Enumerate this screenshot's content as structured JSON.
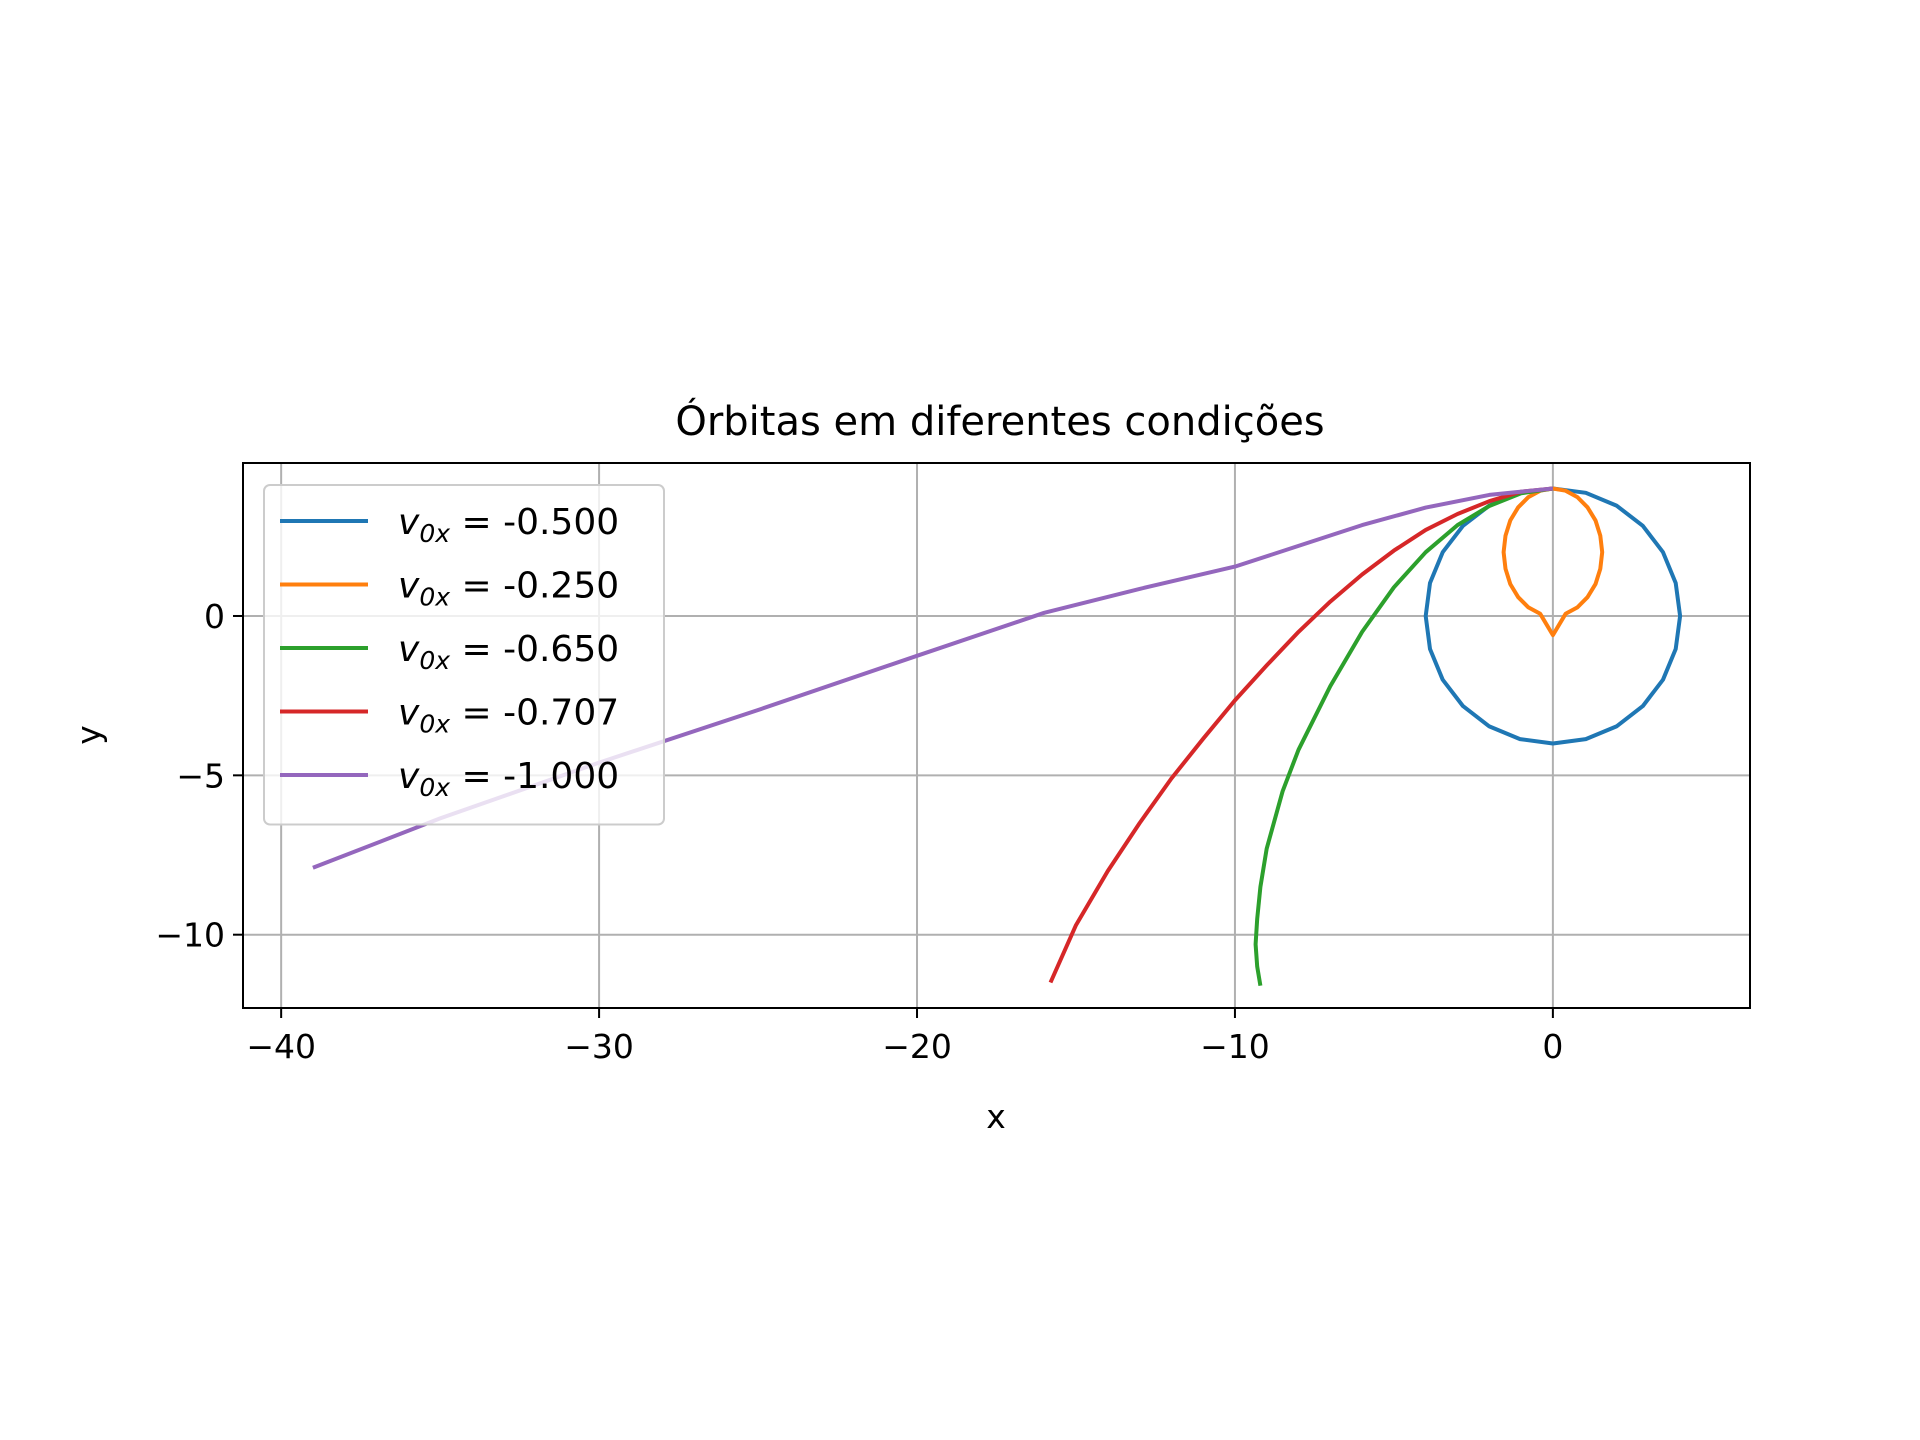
{
  "chart_data": {
    "type": "line",
    "title": "Órbitas em diferentes condições",
    "xlabel": "x",
    "ylabel": "y",
    "xlim": [
      -41.2,
      6.2
    ],
    "ylim": [
      -12.3,
      4.8
    ],
    "xticks": [
      -40,
      -30,
      -20,
      -10,
      0
    ],
    "xtick_labels": [
      "−40",
      "−30",
      "−20",
      "−10",
      "0"
    ],
    "yticks": [
      -10,
      -5,
      0
    ],
    "ytick_labels": [
      "−10",
      "−5",
      "0"
    ],
    "grid": true,
    "legend_position": "top-left",
    "legend_symbol": "v",
    "legend_subscript": "0x",
    "series": [
      {
        "name": "-0.500",
        "color": "#1f77b4",
        "x": [
          0,
          1.0353,
          2.0,
          2.8284,
          3.4641,
          3.8637,
          4.0,
          3.8637,
          3.4641,
          2.8284,
          2.0,
          1.0353,
          0,
          -1.0353,
          -2.0,
          -2.8284,
          -3.4641,
          -3.8637,
          -4.0,
          -3.8637,
          -3.4641,
          -2.8284,
          -2.0,
          -1.0353,
          0
        ],
        "y": [
          4.0,
          3.8637,
          3.4641,
          2.8284,
          2.0,
          1.0353,
          0,
          -1.0353,
          -2.0,
          -2.8284,
          -3.4641,
          -3.8637,
          -4.0,
          -3.8637,
          -3.4641,
          -2.8284,
          -2.0,
          -1.0353,
          0,
          1.0353,
          2.0,
          2.8284,
          3.4641,
          3.8637,
          4.0
        ]
      },
      {
        "name": "-0.250",
        "color": "#ff7f0e",
        "x": [
          0,
          -0.4,
          -0.77,
          -1.09,
          -1.34,
          -1.49,
          -1.55,
          -1.49,
          -1.34,
          -1.09,
          -0.77,
          -0.4,
          0,
          0.4,
          0.77,
          1.09,
          1.34,
          1.49,
          1.55,
          1.49,
          1.34,
          1.09,
          0.77,
          0.4,
          0
        ],
        "y": [
          4.0,
          3.93,
          3.73,
          3.41,
          3.0,
          2.52,
          2.0,
          1.48,
          1.0,
          0.59,
          0.27,
          0.07,
          -0.6,
          0.07,
          0.27,
          0.59,
          1.0,
          1.48,
          2.0,
          2.52,
          3.0,
          3.41,
          3.73,
          3.93,
          4.0
        ]
      },
      {
        "name": "-0.650",
        "color": "#2ca02c",
        "x": [
          0,
          -1.0,
          -2.0,
          -3.0,
          -4.0,
          -5.0,
          -6.0,
          -7.0,
          -8.0,
          -8.5,
          -9.0,
          -9.2,
          -9.3,
          -9.35,
          -9.3,
          -9.2
        ],
        "y": [
          4.0,
          3.85,
          3.45,
          2.85,
          2.0,
          0.9,
          -0.5,
          -2.2,
          -4.2,
          -5.5,
          -7.3,
          -8.5,
          -9.5,
          -10.3,
          -11.0,
          -11.6
        ]
      },
      {
        "name": "-0.707",
        "color": "#d62728",
        "x": [
          0,
          -1.0,
          -2.0,
          -3.0,
          -4.0,
          -5.0,
          -6.0,
          -7.0,
          -8.0,
          -9.0,
          -10.0,
          -11.0,
          -12.0,
          -13.0,
          -14.0,
          -15.0,
          -15.8
        ],
        "y": [
          4.0,
          3.9,
          3.6,
          3.2,
          2.7,
          2.05,
          1.3,
          0.45,
          -0.5,
          -1.55,
          -2.65,
          -3.85,
          -5.1,
          -6.5,
          -8.0,
          -9.7,
          -11.5
        ]
      },
      {
        "name": "-1.000",
        "color": "#9467bd",
        "x": [
          0,
          -2.0,
          -4.0,
          -6.0,
          -8.0,
          -10.0,
          -13.0,
          -16.0,
          -20.0,
          -25.0,
          -30.0,
          -35.0,
          -39.0
        ],
        "y": [
          4.0,
          3.8,
          3.4,
          2.85,
          2.2,
          1.55,
          0.85,
          0.1,
          -1.25,
          -2.95,
          -4.6,
          -6.35,
          -7.9
        ]
      }
    ]
  }
}
